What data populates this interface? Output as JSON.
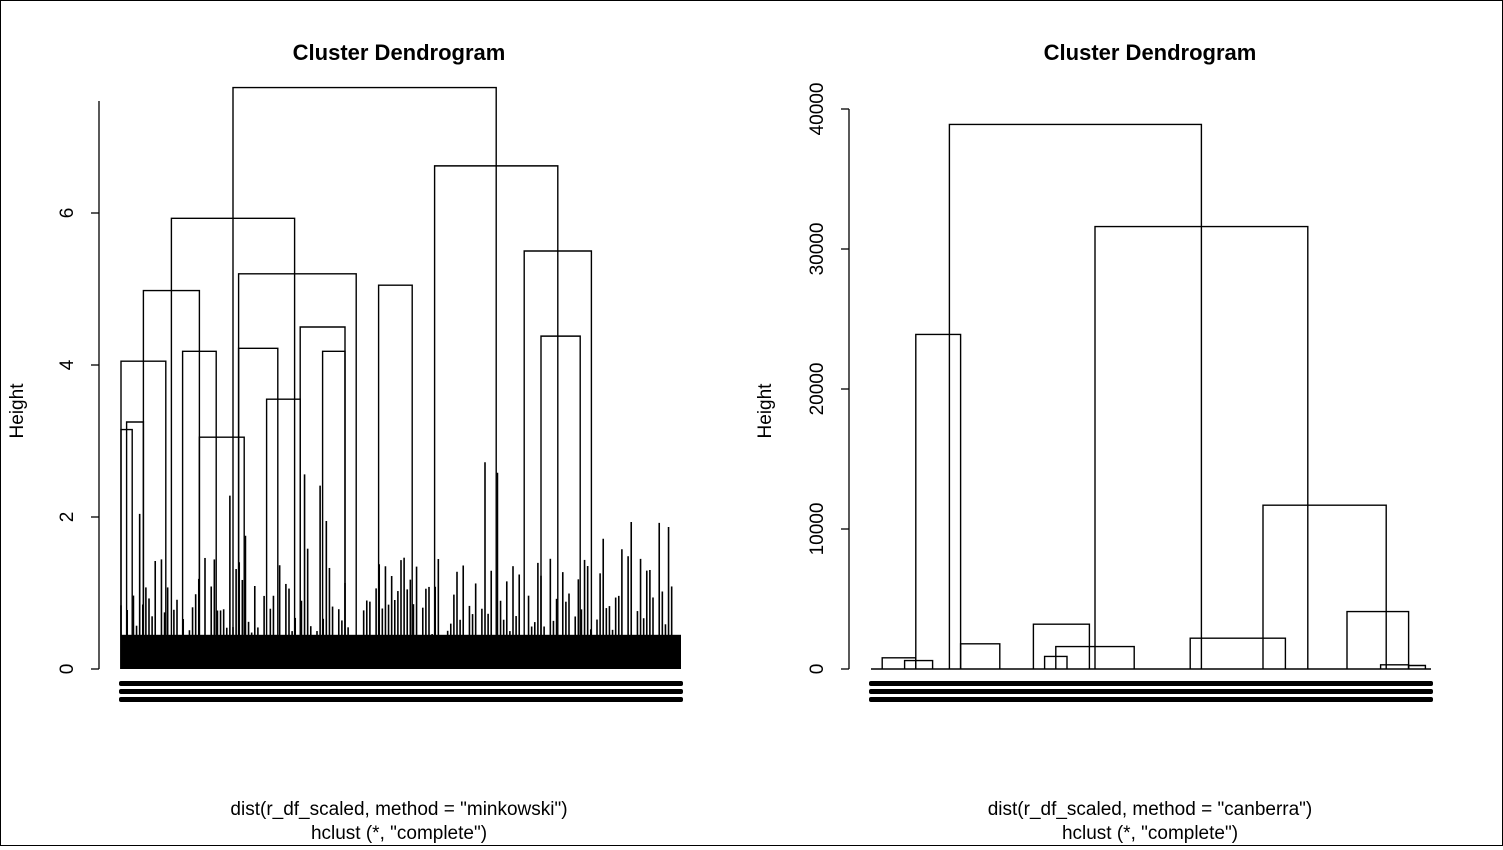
{
  "chart_data": [
    {
      "type": "dendrogram",
      "title": "Cluster Dendrogram",
      "ylabel": "Height",
      "xlabel_line1": "dist(r_df_scaled, method = \"minkowski\")",
      "xlabel_line2": "hclust (*, \"complete\")",
      "ylim": [
        0,
        8
      ],
      "yticks": [
        0,
        2,
        4,
        6
      ],
      "ytick_labels": [
        "0",
        "2",
        "4",
        "6"
      ],
      "merges": [
        {
          "left": 0.2,
          "right": 0.67,
          "height": 7.65
        },
        {
          "left": 0.09,
          "right": 0.31,
          "height": 5.93
        },
        {
          "left": 0.56,
          "right": 0.78,
          "height": 6.62
        },
        {
          "left": 0.04,
          "right": 0.14,
          "height": 4.98
        },
        {
          "left": 0.21,
          "right": 0.42,
          "height": 5.2
        },
        {
          "left": 0.72,
          "right": 0.84,
          "height": 5.5
        },
        {
          "left": 0.0,
          "right": 0.08,
          "height": 4.05
        },
        {
          "left": 0.11,
          "right": 0.17,
          "height": 4.18
        },
        {
          "left": 0.01,
          "right": 0.04,
          "height": 3.25
        },
        {
          "left": 0.14,
          "right": 0.22,
          "height": 3.05
        },
        {
          "left": 0.0,
          "right": 0.02,
          "height": 3.15
        },
        {
          "left": 0.21,
          "right": 0.28,
          "height": 4.22
        },
        {
          "left": 0.32,
          "right": 0.4,
          "height": 4.5
        },
        {
          "left": 0.26,
          "right": 0.32,
          "height": 3.55
        },
        {
          "left": 0.36,
          "right": 0.4,
          "height": 4.18
        },
        {
          "left": 0.75,
          "right": 0.82,
          "height": 4.38
        },
        {
          "left": 0.46,
          "right": 0.52,
          "height": 5.05
        }
      ]
    },
    {
      "type": "dendrogram",
      "title": "Cluster Dendrogram",
      "ylabel": "Height",
      "xlabel_line1": "dist(r_df_scaled, method = \"canberra\")",
      "xlabel_line2": "hclust (*, \"complete\")",
      "ylim": [
        0,
        40000
      ],
      "yticks": [
        0,
        10000,
        20000,
        30000,
        40000
      ],
      "ytick_labels": [
        "0",
        "10000",
        "20000",
        "30000",
        "40000"
      ],
      "merges": [
        {
          "left": 0.14,
          "right": 0.59,
          "height": 38900
        },
        {
          "left": 0.08,
          "right": 0.16,
          "height": 23900
        },
        {
          "left": 0.4,
          "right": 0.78,
          "height": 31600
        },
        {
          "left": 0.7,
          "right": 0.92,
          "height": 11700
        },
        {
          "left": 0.85,
          "right": 0.96,
          "height": 4100
        },
        {
          "left": 0.29,
          "right": 0.39,
          "height": 3200
        },
        {
          "left": 0.16,
          "right": 0.23,
          "height": 1800
        },
        {
          "left": 0.33,
          "right": 0.47,
          "height": 1600
        },
        {
          "left": 0.57,
          "right": 0.74,
          "height": 2200
        },
        {
          "left": 0.02,
          "right": 0.08,
          "height": 800
        },
        {
          "left": 0.06,
          "right": 0.11,
          "height": 600
        },
        {
          "left": 0.31,
          "right": 0.35,
          "height": 900
        },
        {
          "left": 0.91,
          "right": 0.96,
          "height": 300
        },
        {
          "left": 0.96,
          "right": 0.99,
          "height": 250
        }
      ]
    }
  ]
}
